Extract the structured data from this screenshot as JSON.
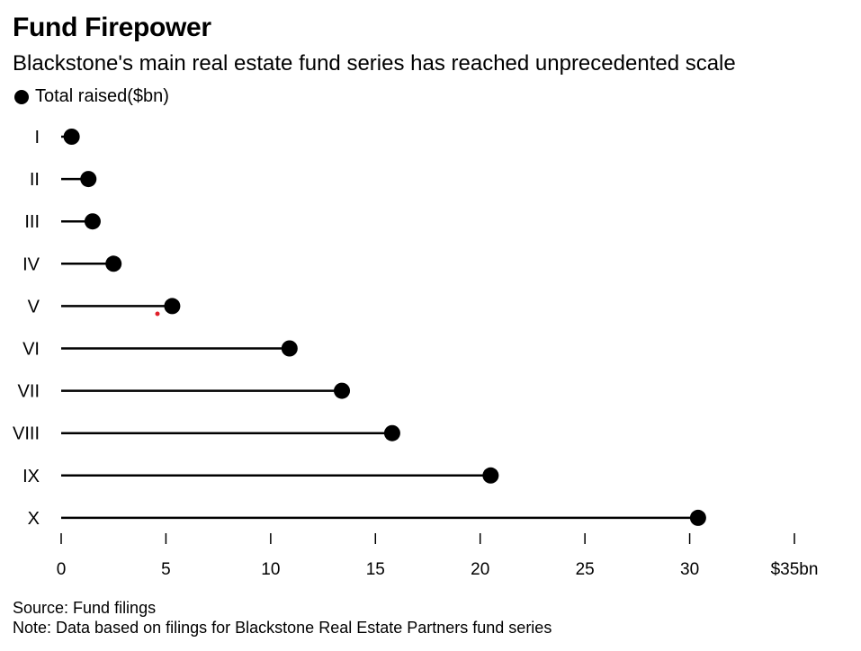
{
  "header": {
    "title": "Fund Firepower",
    "subtitle": "Blackstone's main real estate fund series has reached unprecedented scale"
  },
  "legend": {
    "label": "Total raised($bn)"
  },
  "footer": {
    "source": "Source: Fund filings",
    "note": "Note: Data based on filings for Blackstone Real Estate Partners fund series"
  },
  "colors": {
    "dot": "#000000",
    "line": "#000000",
    "marker": "#e0202a"
  },
  "chart_data": {
    "type": "lollipop",
    "title": "Fund Firepower",
    "subtitle": "Blackstone's main real estate fund series has reached unprecedented scale",
    "categories": [
      "I",
      "II",
      "III",
      "IV",
      "V",
      "VI",
      "VII",
      "VIII",
      "IX",
      "X"
    ],
    "series": [
      {
        "name": "Total raised($bn)",
        "values": [
          0.5,
          1.3,
          1.5,
          2.5,
          5.3,
          10.9,
          13.4,
          15.8,
          20.5,
          30.4
        ]
      }
    ],
    "xlim": [
      0,
      35
    ],
    "xticks": [
      0,
      5,
      10,
      15,
      20,
      25,
      30,
      35
    ],
    "xtick_labels": [
      "0",
      "5",
      "10",
      "15",
      "20",
      "25",
      "30",
      "$35bn"
    ],
    "grid": false,
    "legend_position": "top-left"
  }
}
